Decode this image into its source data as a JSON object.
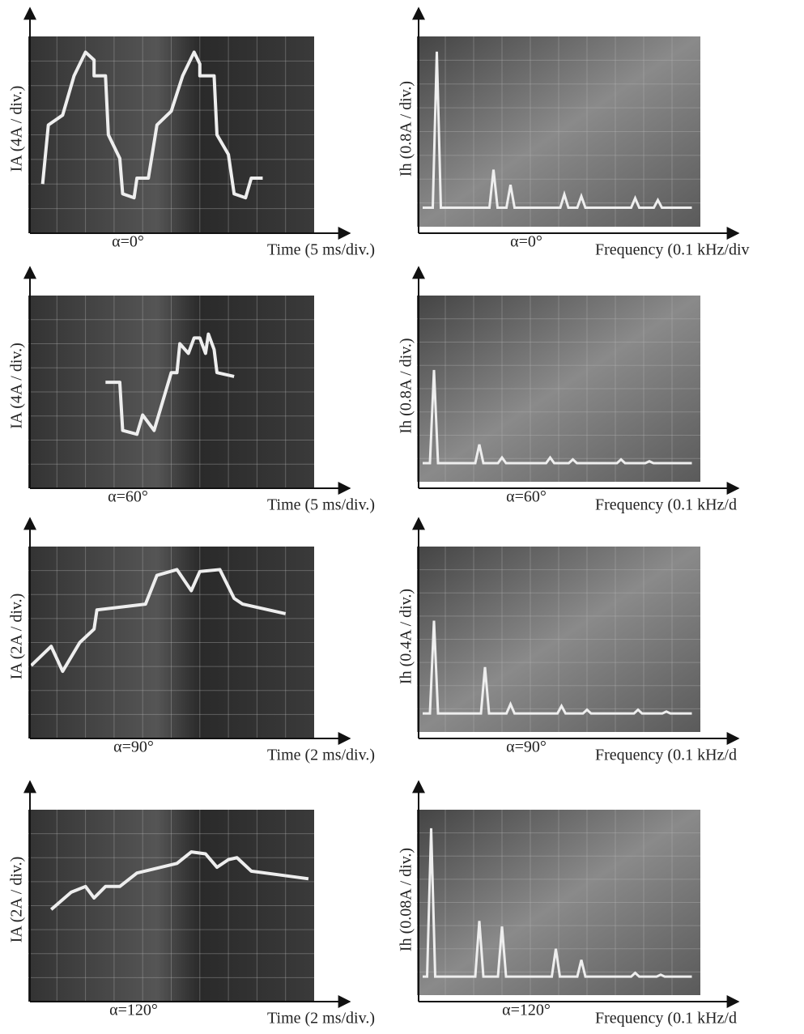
{
  "panels": [
    {
      "left": {
        "y_label": "IA (4A / div.)",
        "caption": "α=0°",
        "x_label": "Time (5 ms/div.)"
      },
      "right": {
        "y_label": "Ih (0.8A / div.)",
        "caption": "α=0°",
        "x_label": "Frequency (0.1 kHz/div"
      }
    },
    {
      "left": {
        "y_label": "IA (4A / div.)",
        "caption": "α=60°",
        "x_label": "Time (5 ms/div.)"
      },
      "right": {
        "y_label": "Ih (0.8A / div.)",
        "caption": "α=60°",
        "x_label": "Frequency (0.1 kHz/d"
      }
    },
    {
      "left": {
        "y_label": "IA (2A / div.)",
        "caption": "α=90°",
        "x_label": "Time (2 ms/div.)"
      },
      "right": {
        "y_label": "Ih (0.4A / div.)",
        "caption": "α=90°",
        "x_label": "Frequency (0.1 kHz/d"
      }
    },
    {
      "left": {
        "y_label": "IA (2A / div.)",
        "caption": "α=120°",
        "x_label": "Time (2 ms/div.)"
      },
      "right": {
        "y_label": "Ih (0.08A / div.)",
        "caption": "α=120°",
        "x_label": "Frequency (0.1 kHz/d"
      }
    }
  ]
}
